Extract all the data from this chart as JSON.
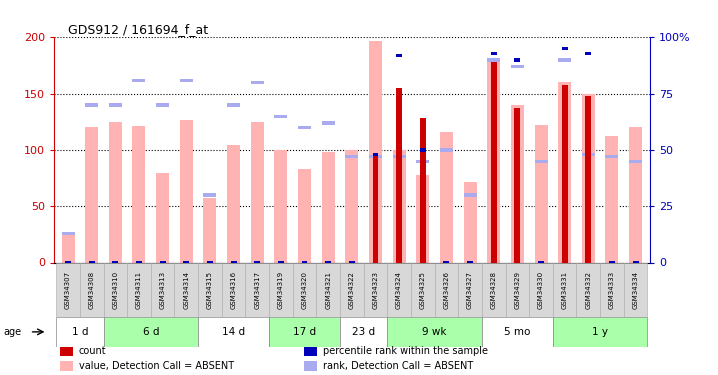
{
  "title": "GDS912 / 161694_f_at",
  "samples": [
    "GSM34307",
    "GSM34308",
    "GSM34310",
    "GSM34311",
    "GSM34313",
    "GSM34314",
    "GSM34315",
    "GSM34316",
    "GSM34317",
    "GSM34319",
    "GSM34320",
    "GSM34321",
    "GSM34322",
    "GSM34323",
    "GSM34324",
    "GSM34325",
    "GSM34326",
    "GSM34327",
    "GSM34328",
    "GSM34329",
    "GSM34330",
    "GSM34331",
    "GSM34332",
    "GSM34333",
    "GSM34334"
  ],
  "pink_values": [
    25,
    120,
    125,
    121,
    80,
    127,
    57,
    104,
    125,
    100,
    83,
    98,
    100,
    197,
    100,
    78,
    116,
    72,
    180,
    140,
    122,
    160,
    150,
    112,
    120
  ],
  "pink_ranks": [
    13,
    70,
    70,
    81,
    70,
    81,
    30,
    70,
    80,
    65,
    60,
    62,
    47,
    47,
    47,
    45,
    50,
    30,
    90,
    87,
    45,
    90,
    48,
    47,
    45
  ],
  "red_values": [
    0,
    0,
    0,
    0,
    0,
    0,
    0,
    0,
    0,
    0,
    0,
    0,
    0,
    95,
    155,
    128,
    0,
    0,
    178,
    137,
    0,
    158,
    148,
    0,
    0
  ],
  "blue_ranks": [
    0,
    0,
    0,
    0,
    0,
    0,
    0,
    0,
    0,
    0,
    0,
    0,
    0,
    48,
    92,
    50,
    0,
    0,
    93,
    90,
    0,
    95,
    93,
    0,
    0
  ],
  "age_groups": [
    {
      "label": "1 d",
      "cols": [
        0,
        1
      ],
      "color": "#ffffff"
    },
    {
      "label": "6 d",
      "cols": [
        2,
        3,
        4,
        5
      ],
      "color": "#aaffaa"
    },
    {
      "label": "14 d",
      "cols": [
        6,
        7,
        8
      ],
      "color": "#ffffff"
    },
    {
      "label": "17 d",
      "cols": [
        9,
        10,
        11
      ],
      "color": "#aaffaa"
    },
    {
      "label": "23 d",
      "cols": [
        12,
        13
      ],
      "color": "#ffffff"
    },
    {
      "label": "9 wk",
      "cols": [
        14,
        15,
        16,
        17
      ],
      "color": "#aaffaa"
    },
    {
      "label": "5 mo",
      "cols": [
        18,
        19,
        20
      ],
      "color": "#ffffff"
    },
    {
      "label": "1 y",
      "cols": [
        21,
        22,
        23,
        24
      ],
      "color": "#aaffaa"
    }
  ],
  "ylim_left": [
    0,
    200
  ],
  "ylim_right": [
    0,
    100
  ],
  "left_ticks": [
    0,
    50,
    100,
    150,
    200
  ],
  "right_ticks": [
    0,
    25,
    50,
    75,
    100
  ],
  "right_tick_labels": [
    "0",
    "25",
    "50",
    "75",
    "100%"
  ],
  "pink_color": "#ffb3b3",
  "blue_rank_color": "#aaaaee",
  "red_color": "#cc0000",
  "blue_color": "#0000bb",
  "left_axis_color": "#cc0000",
  "right_axis_color": "#0000bb",
  "grid_color": "#000000",
  "sample_box_color": "#d8d8d8",
  "legend": [
    {
      "color": "#cc0000",
      "label": "count"
    },
    {
      "color": "#0000bb",
      "label": "percentile rank within the sample"
    },
    {
      "color": "#ffb3b3",
      "label": "value, Detection Call = ABSENT"
    },
    {
      "color": "#aaaaee",
      "label": "rank, Detection Call = ABSENT"
    }
  ]
}
